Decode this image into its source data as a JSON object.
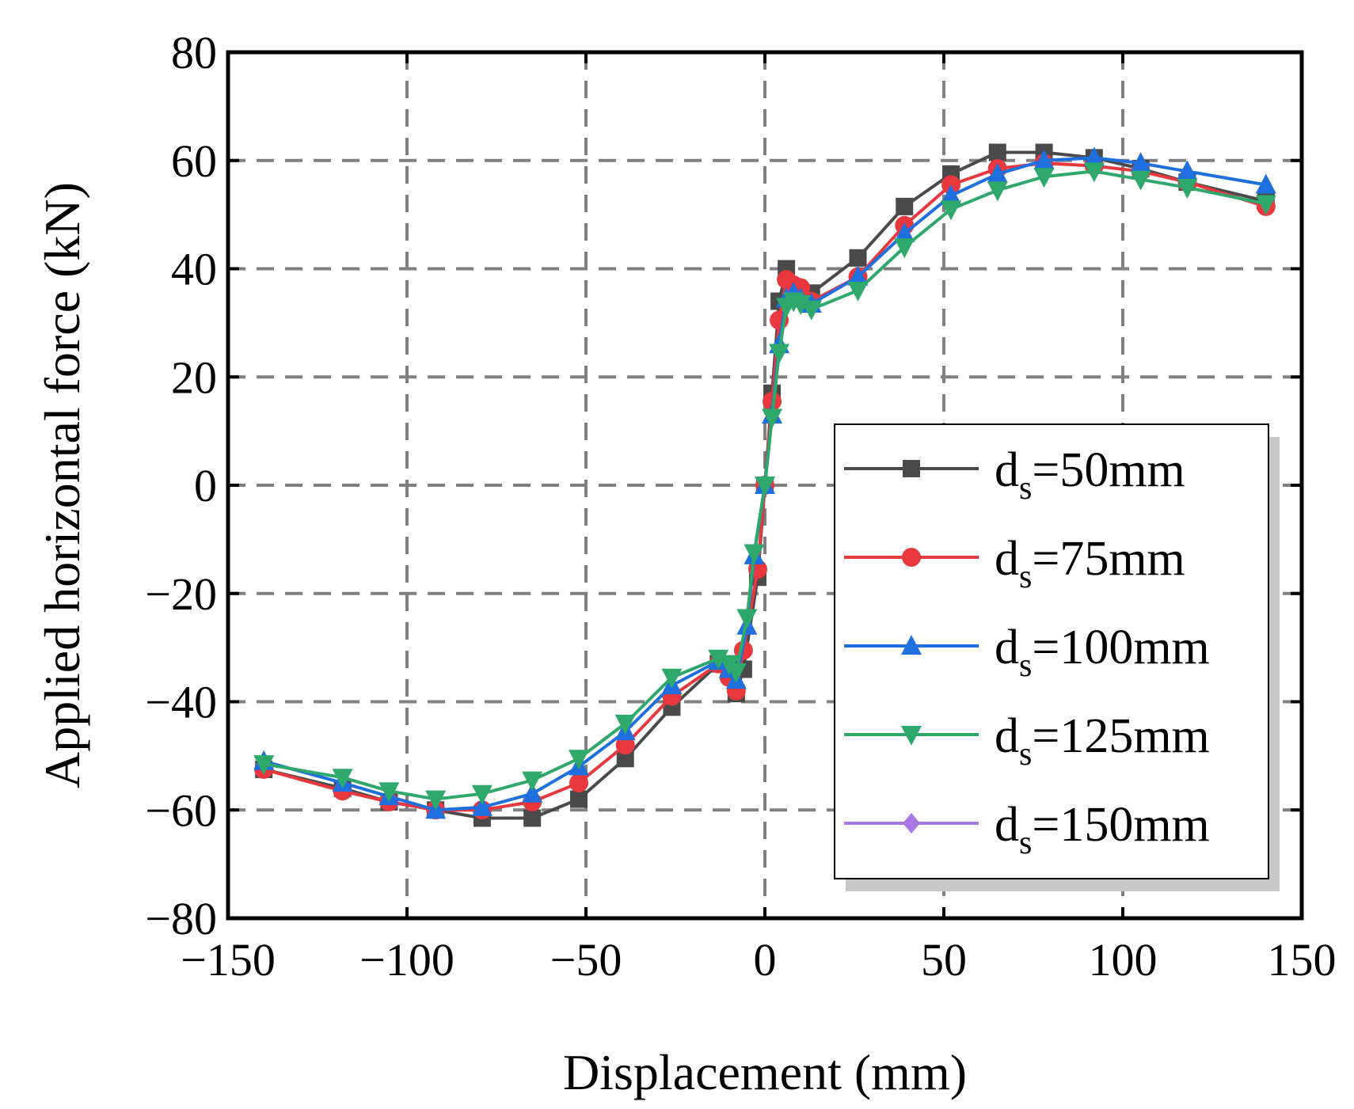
{
  "chart_data": {
    "type": "line",
    "xlabel": "Displacement (mm)",
    "ylabel": "Applied horizontal force (kN)",
    "xlim": [
      -150,
      150
    ],
    "ylim": [
      -80,
      80
    ],
    "xticks": [
      -150,
      -100,
      -50,
      0,
      50,
      100,
      150
    ],
    "yticks": [
      -80,
      -60,
      -40,
      -20,
      0,
      20,
      40,
      60,
      80
    ],
    "xtick_labels": [
      "−150",
      "−100",
      "−50",
      "0",
      "50",
      "100",
      "150"
    ],
    "ytick_labels": [
      "−80",
      "−60",
      "−40",
      "−20",
      "0",
      "20",
      "40",
      "60",
      "80"
    ],
    "grid": true,
    "legend_position": "lower-right",
    "series": [
      {
        "name": "d_s=50mm",
        "label_main": "d",
        "label_sub": "s",
        "label_rest": "=50mm",
        "color": "#4a4a4a",
        "marker": "square",
        "x": [
          -140,
          -118,
          -105,
          -92,
          -79,
          -65,
          -52,
          -39,
          -26,
          -13,
          -8,
          -6,
          -2,
          0,
          2,
          4,
          6,
          8,
          10,
          13,
          26,
          39,
          52,
          65,
          78,
          92,
          105,
          118,
          140
        ],
        "y": [
          -52.5,
          -56,
          -58.5,
          -60,
          -61.5,
          -61.5,
          -58,
          -50.5,
          -41,
          -33,
          -38.5,
          -34,
          -17,
          0,
          17,
          34,
          40,
          36.5,
          35.5,
          35.5,
          42,
          51.5,
          57.5,
          61.5,
          61.5,
          60.5,
          58.5,
          56,
          52.5
        ]
      },
      {
        "name": "d_s=75mm",
        "label_main": "d",
        "label_sub": "s",
        "label_rest": "=75mm",
        "color": "#e8383d",
        "marker": "circle",
        "x": [
          -140,
          -118,
          -105,
          -92,
          -79,
          -65,
          -52,
          -39,
          -26,
          -13,
          -10,
          -8,
          -6,
          -2,
          0,
          2,
          4,
          6,
          8,
          10,
          13,
          26,
          39,
          52,
          65,
          78,
          92,
          105,
          118,
          140
        ],
        "y": [
          -52.5,
          -56.5,
          -58.5,
          -60,
          -60,
          -58.5,
          -55,
          -48,
          -39,
          -33,
          -35.5,
          -38,
          -30.5,
          -15.5,
          0,
          15.5,
          30.5,
          38,
          37,
          36.5,
          34,
          38.5,
          48,
          55.5,
          58.5,
          59.5,
          59,
          58,
          56,
          51.5
        ]
      },
      {
        "name": "d_s=100mm",
        "label_main": "d",
        "label_sub": "s",
        "label_rest": "=100mm",
        "color": "#1f6fde",
        "marker": "triangle-up",
        "x": [
          -140,
          -118,
          -105,
          -92,
          -79,
          -65,
          -52,
          -39,
          -26,
          -13,
          -10,
          -8,
          -5,
          -3,
          0,
          2,
          4,
          6,
          8,
          10,
          13,
          26,
          39,
          52,
          65,
          78,
          92,
          105,
          118,
          140
        ],
        "y": [
          -51,
          -55,
          -57.5,
          -60,
          -59.5,
          -57,
          -52,
          -45.5,
          -37,
          -32.5,
          -34,
          -36,
          -26,
          -13,
          0,
          13,
          26,
          34.5,
          35.5,
          34.5,
          33.5,
          38.5,
          46.5,
          53.5,
          57.5,
          60,
          60.5,
          59.5,
          58,
          55.5
        ]
      },
      {
        "name": "d_s=125mm",
        "label_main": "d",
        "label_sub": "s",
        "label_rest": "=125mm",
        "color": "#2ea86b",
        "marker": "triangle-down",
        "x": [
          -140,
          -118,
          -105,
          -92,
          -79,
          -65,
          -52,
          -39,
          -26,
          -13,
          -10,
          -8,
          -5,
          -3,
          0,
          2,
          4,
          6,
          8,
          10,
          13,
          26,
          39,
          52,
          65,
          78,
          92,
          105,
          118,
          140
        ],
        "y": [
          -51.5,
          -54,
          -56.5,
          -58,
          -57,
          -54.5,
          -50.5,
          -44,
          -35.5,
          -32,
          -33,
          -34.5,
          -24.5,
          -12.5,
          0,
          12.5,
          24.5,
          33,
          34,
          33.5,
          32.5,
          36,
          44,
          51,
          54.5,
          57,
          58,
          56.5,
          55,
          52
        ]
      },
      {
        "name": "d_s=150mm",
        "label_main": "d",
        "label_sub": "s",
        "label_rest": "=150mm",
        "color": "#a978e3",
        "marker": "diamond",
        "x": [],
        "y": []
      }
    ]
  }
}
